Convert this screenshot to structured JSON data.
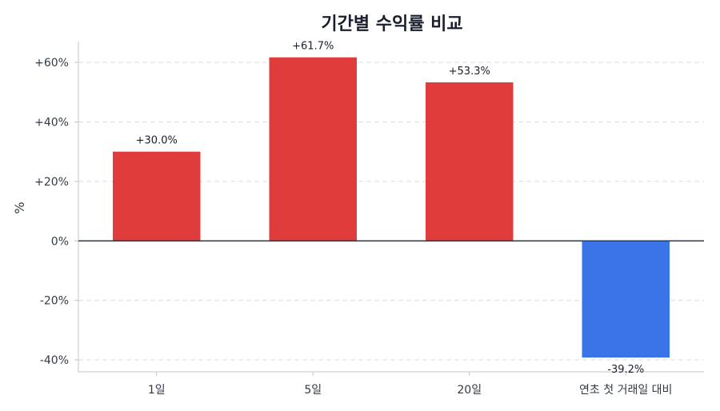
{
  "chart_data": {
    "type": "bar",
    "title": "기간별 수익률 비교",
    "ylabel": "%",
    "xlabel": "",
    "categories": [
      "1일",
      "5일",
      "20일",
      "연초 첫 거래일 대비"
    ],
    "values": [
      30.0,
      61.7,
      53.3,
      -39.2
    ],
    "data_labels": [
      "+30.0%",
      "+61.7%",
      "+53.3%",
      "-39.2%"
    ],
    "ylim": [
      -44,
      67
    ],
    "yticks": [
      -40,
      -20,
      0,
      20,
      40,
      60
    ],
    "ytick_labels": [
      "-40%",
      "-20%",
      "0%",
      "+20%",
      "+40%",
      "+60%"
    ],
    "grid": "horizontal dashed",
    "colors": {
      "positive": "#e03c3c",
      "negative": "#3b73e8",
      "zero_line": "#2b3a4a",
      "grid": "#d9dde3",
      "axis": "#c0c4ca"
    }
  }
}
